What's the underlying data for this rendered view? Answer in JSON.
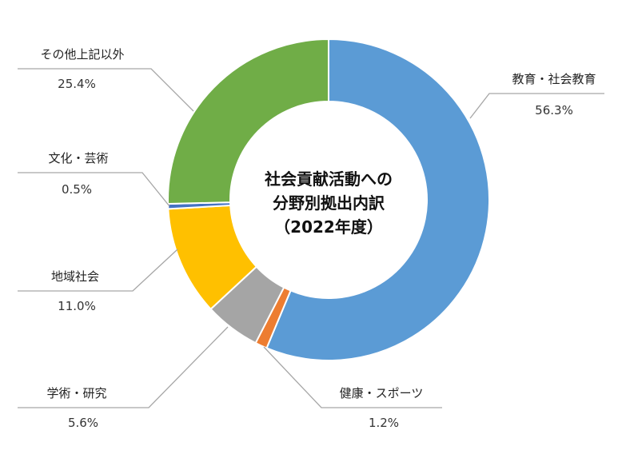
{
  "chart_data": {
    "type": "pie",
    "variant": "donut",
    "title_lines": [
      "社会貢献活動への",
      "分野別拠出内訳",
      "（2022年度）"
    ],
    "slices": [
      {
        "name": "教育・社会教育",
        "value": 56.3,
        "label": "56.3%",
        "color": "#5b9bd5"
      },
      {
        "name": "健康・スポーツ",
        "value": 1.2,
        "label": "1.2%",
        "color": "#ed7d31"
      },
      {
        "name": "学術・研究",
        "value": 5.6,
        "label": "5.6%",
        "color": "#a5a5a5"
      },
      {
        "name": "地域社会",
        "value": 11.0,
        "label": "11.0%",
        "color": "#ffc000"
      },
      {
        "name": "文化・芸術",
        "value": 0.5,
        "label": "0.5%",
        "color": "#4472c4"
      },
      {
        "name": "その他上記以外",
        "value": 25.4,
        "label": "25.4%",
        "color": "#70ad47"
      }
    ],
    "start_angle_deg": 0,
    "direction": "clockwise",
    "legend": "none"
  }
}
